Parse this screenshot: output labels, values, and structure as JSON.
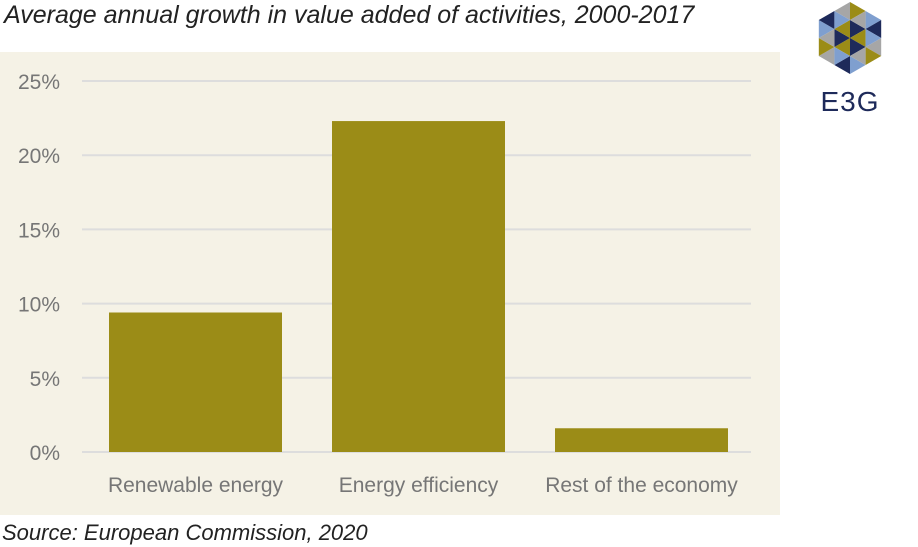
{
  "title": "Average annual growth in value added of activities, 2000-2017",
  "source": "Source: European Commission, 2020",
  "logo": {
    "text": "E3G",
    "icon": "e3g-hexagon-logo"
  },
  "colors": {
    "bar": "#9b8c17",
    "plot_background": "#f5f2e6",
    "grid": "#dddddd",
    "tick_text": "#767676",
    "logo_navy": "#1e2a5a",
    "logo_olive": "#9b8c17",
    "logo_blue": "#7f9fcf",
    "logo_grey": "#a6a6a6"
  },
  "chart_data": {
    "type": "bar",
    "categories": [
      "Renewable energy",
      "Energy efficiency",
      "Rest of the economy"
    ],
    "values": [
      9.4,
      22.3,
      1.6
    ],
    "y_ticks": [
      "0%",
      "5%",
      "10%",
      "15%",
      "20%",
      "25%"
    ],
    "ylim": [
      0,
      25
    ],
    "ytick_step": 5,
    "grid": true,
    "legend": "none",
    "xlabel": "",
    "ylabel": ""
  }
}
